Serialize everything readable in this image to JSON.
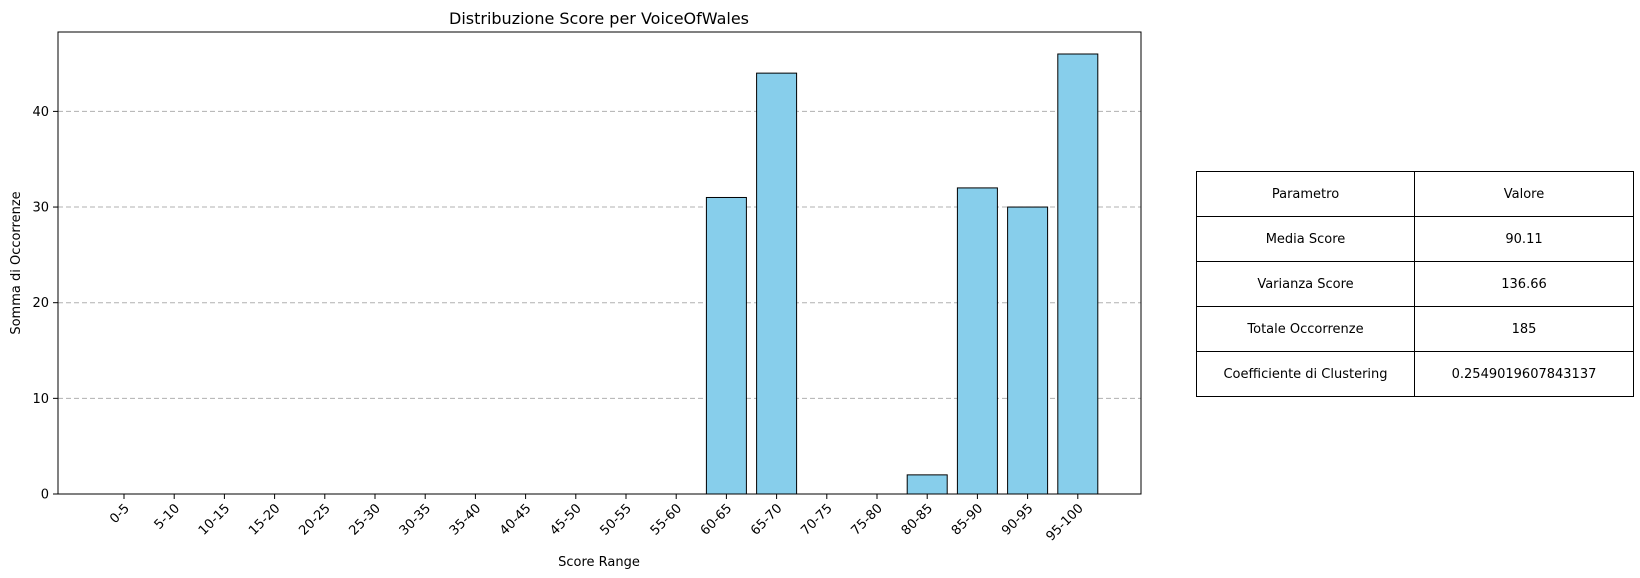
{
  "chart_data": {
    "type": "bar",
    "title": "Distribuzione Score per VoiceOfWales",
    "xlabel": "Score Range",
    "ylabel": "Somma di Occorrenze",
    "categories": [
      "0-5",
      "5-10",
      "10-15",
      "15-20",
      "20-25",
      "25-30",
      "30-35",
      "35-40",
      "40-45",
      "45-50",
      "50-55",
      "55-60",
      "60-65",
      "65-70",
      "70-75",
      "75-80",
      "80-85",
      "85-90",
      "90-95",
      "95-100"
    ],
    "values": [
      0,
      0,
      0,
      0,
      0,
      0,
      0,
      0,
      0,
      0,
      0,
      0,
      31,
      44,
      0,
      0,
      2,
      32,
      30,
      46
    ],
    "ylim": [
      0,
      48.3
    ],
    "yticks": [
      0,
      10,
      20,
      30,
      40
    ],
    "grid": "y-dashed",
    "colors": {
      "bar_fill": "#87ceeb",
      "bar_edge": "#000000",
      "grid": "#b0b0b0"
    }
  },
  "table": {
    "header": {
      "param": "Parametro",
      "value": "Valore"
    },
    "rows": [
      {
        "param": "Media Score",
        "value": "90.11"
      },
      {
        "param": "Varianza Score",
        "value": "136.66"
      },
      {
        "param": "Totale Occorrenze",
        "value": "185"
      },
      {
        "param": "Coefficiente di Clustering",
        "value": "0.2549019607843137"
      }
    ]
  }
}
